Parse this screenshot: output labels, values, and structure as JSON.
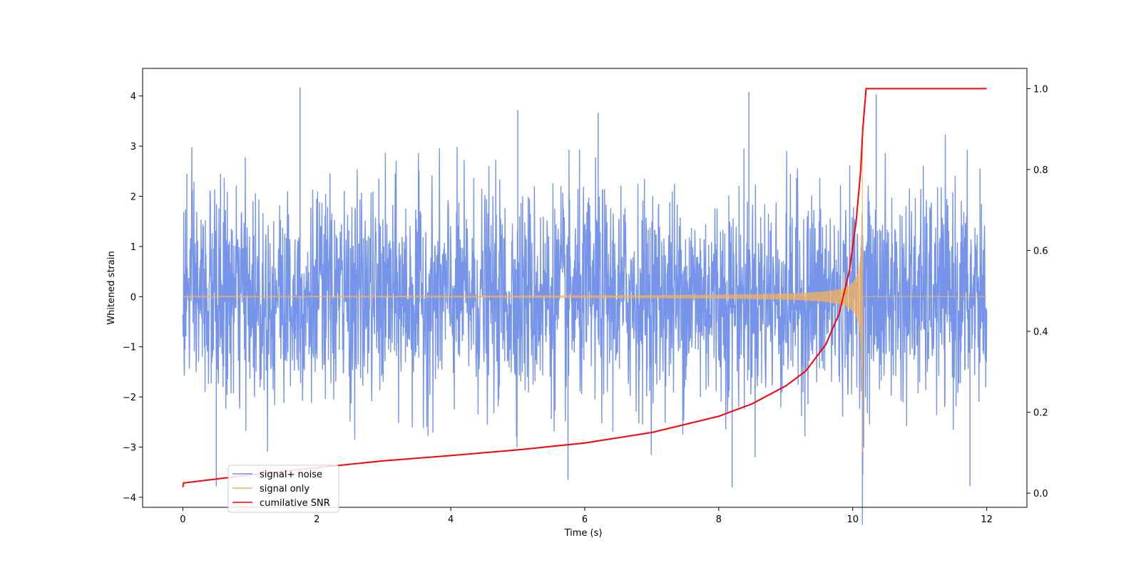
{
  "chart_data": {
    "type": "line",
    "title": "",
    "xlabel": "Time (s)",
    "ylabel": "Whitened strain",
    "y2label": "",
    "xlim": [
      -0.6,
      12.6
    ],
    "ylim": [
      -4.2,
      4.55
    ],
    "y2lim": [
      -0.035,
      1.05
    ],
    "x_ticks": [
      0,
      2,
      4,
      6,
      8,
      10,
      12
    ],
    "y_ticks": [
      -4,
      -3,
      -2,
      -1,
      0,
      1,
      2,
      3,
      4
    ],
    "y2_ticks": [
      0.0,
      0.2,
      0.4,
      0.6,
      0.8,
      1.0
    ],
    "x_tick_labels": [
      "0",
      "2",
      "4",
      "6",
      "8",
      "10",
      "12"
    ],
    "y_tick_labels": [
      "−4",
      "−3",
      "−2",
      "−1",
      "0",
      "1",
      "2",
      "3",
      "4"
    ],
    "y2_tick_labels": [
      "0.0",
      "0.2",
      "0.4",
      "0.6",
      "0.8",
      "1.0"
    ],
    "grid": false,
    "legend_position": "lower-left",
    "series": [
      {
        "name": "signal+ noise",
        "color": "#6f8ee8",
        "axis": "left",
        "description_values": {
          "t_start": 0,
          "t_end": 12,
          "typical_min": -2.8,
          "typical_max": 2.8,
          "peaks": [
            {
              "x": 1.75,
              "y": 4.17
            },
            {
              "x": 0.06,
              "y": 2.45
            },
            {
              "x": 5.0,
              "y": 3.72
            },
            {
              "x": 6.2,
              "y": 3.67
            },
            {
              "x": 8.45,
              "y": 4.08
            },
            {
              "x": 10.35,
              "y": 4.03
            },
            {
              "x": 11.9,
              "y": 2.55
            },
            {
              "x": 0.5,
              "y": -3.78
            },
            {
              "x": 5.75,
              "y": -3.65
            },
            {
              "x": 8.2,
              "y": -3.8
            },
            {
              "x": 11.75,
              "y": -3.78
            },
            {
              "x": 10.15,
              "y": -3.55
            }
          ]
        }
      },
      {
        "name": "signal only",
        "color": "#f5b35a",
        "axis": "left",
        "description_values": {
          "chirp_start": 0,
          "chirp_merger": 10.15,
          "amplitude_start": 0.02,
          "amplitude_peak": 3.1,
          "value_after_merger": 0
        }
      },
      {
        "name": "cumilative SNR",
        "color": "#ff0000",
        "axis": "right",
        "x": [
          0,
          0.01,
          1,
          2,
          3,
          4,
          5,
          6,
          7,
          8,
          8.5,
          9,
          9.3,
          9.6,
          9.8,
          9.95,
          10.05,
          10.12,
          10.15,
          10.2,
          12
        ],
        "values": [
          0.015,
          0.025,
          0.045,
          0.063,
          0.08,
          0.093,
          0.107,
          0.124,
          0.15,
          0.19,
          0.221,
          0.265,
          0.302,
          0.368,
          0.445,
          0.55,
          0.67,
          0.8,
          0.9,
          1.0,
          1.0
        ]
      }
    ]
  }
}
